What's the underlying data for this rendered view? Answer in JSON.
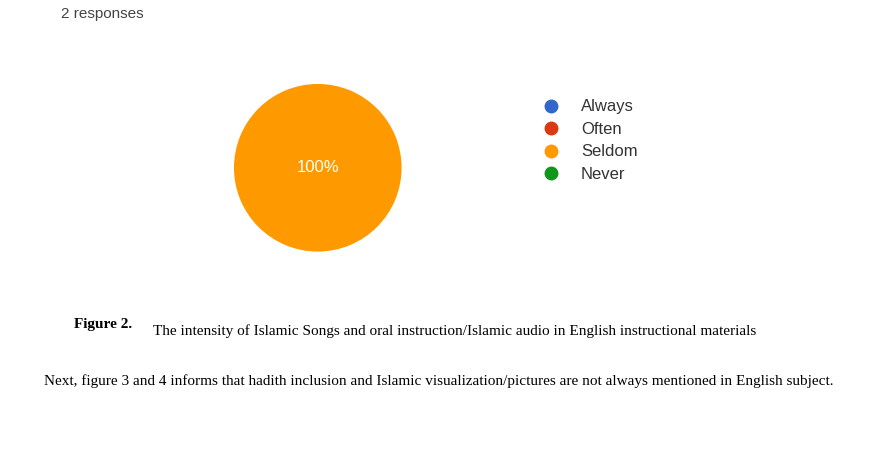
{
  "responses_note": "2 responses",
  "chart_data": {
    "type": "pie",
    "categories": [
      "Always",
      "Often",
      "Seldom",
      "Never"
    ],
    "values": [
      0,
      0,
      100,
      0
    ],
    "colors": [
      "#3366cc",
      "#dc3912",
      "#ff9900",
      "#109618"
    ],
    "data_labels": true,
    "value_labels": [
      null,
      null,
      "100%",
      null
    ],
    "legend": "right"
  },
  "caption": {
    "label": "Figure 2.",
    "text": "The intensity of Islamic Songs and oral instruction/Islamic audio in English instructional materials"
  },
  "paragraph": "Next, figure 3 and 4 informs that hadith inclusion and Islamic visualization/pictures are not always mentioned in English subject."
}
